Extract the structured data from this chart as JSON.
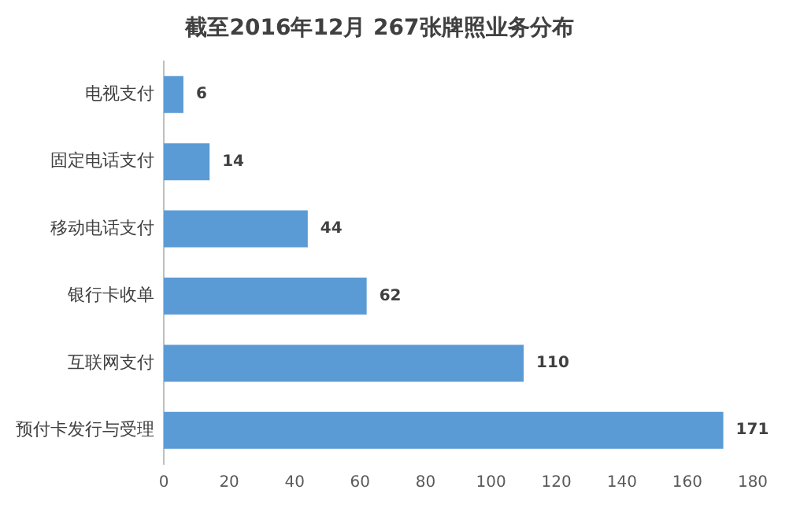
{
  "chart_data": {
    "type": "bar",
    "orientation": "horizontal",
    "title": "截至2016年12月 267张牌照业务分布",
    "categories": [
      "电视支付",
      "固定电话支付",
      "移动电话支付",
      "银行卡收单",
      "互联网支付",
      "预付卡发行与受理"
    ],
    "values": [
      6,
      14,
      44,
      62,
      110,
      171
    ],
    "color": "#5b9bd5",
    "data_labels": true,
    "grid": false,
    "legend": false,
    "xlim": [
      0,
      180
    ],
    "xticks": [
      0,
      20,
      40,
      60,
      80,
      100,
      120,
      140,
      160,
      180
    ]
  }
}
